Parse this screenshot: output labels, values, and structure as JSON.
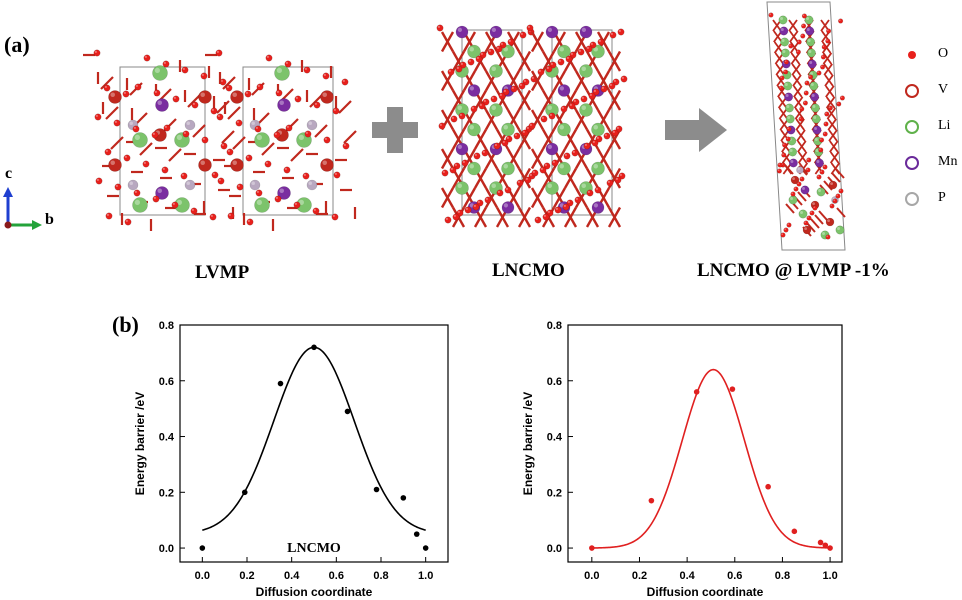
{
  "panels": {
    "a_label": "(a)",
    "b_label": "(b)"
  },
  "structures": {
    "lvmp": "LVMP",
    "lncmo": "LNCMO",
    "composite": "LNCMO @ LVMP -1%"
  },
  "axes_indicator": {
    "c": "c",
    "b": "b"
  },
  "legend": [
    {
      "label": "O",
      "color": "#e8201c",
      "style": "dot"
    },
    {
      "label": "V",
      "color": "#c0281e",
      "style": "ring"
    },
    {
      "label": "Li",
      "color": "#5fb14a",
      "style": "ring"
    },
    {
      "label": "Mn",
      "color": "#6a2a9a",
      "style": "ring"
    },
    {
      "label": "P",
      "color": "#a7a7a7",
      "style": "ring"
    }
  ],
  "colors": {
    "oxygen": "#e8201c",
    "vanadium": "#c0281e",
    "lithium": "#7cc36b",
    "manganese": "#7a2da0",
    "phosphorus": "#b8a8c0",
    "arrow": "#8c8c8c",
    "curve_left": "#000000",
    "curve_right": "#e02020"
  },
  "chart_data": [
    {
      "type": "scatter",
      "xlabel": "Diffusion coordinate",
      "ylabel": "Energy barrier /eV",
      "xlim": [
        -0.1,
        1.1
      ],
      "ylim": [
        -0.05,
        0.8
      ],
      "xticks": [
        "0.0",
        "0.2",
        "0.4",
        "0.6",
        "0.8",
        "1.0"
      ],
      "yticks": [
        "0.0",
        "0.2",
        "0.4",
        "0.6",
        "0.8"
      ],
      "annotation": "LNCMO",
      "color": "#000000",
      "points": [
        {
          "x": 0.0,
          "y": 0.0
        },
        {
          "x": 0.19,
          "y": 0.2
        },
        {
          "x": 0.35,
          "y": 0.59
        },
        {
          "x": 0.5,
          "y": 0.72
        },
        {
          "x": 0.65,
          "y": 0.49
        },
        {
          "x": 0.78,
          "y": 0.21
        },
        {
          "x": 0.9,
          "y": 0.18
        },
        {
          "x": 0.96,
          "y": 0.05
        },
        {
          "x": 1.0,
          "y": 0.0
        }
      ],
      "fit": {
        "center": 0.5,
        "sigma": 0.18,
        "amplitude": 0.67,
        "offset": 0.05
      }
    },
    {
      "type": "scatter",
      "xlabel": "Diffusion coordinate",
      "ylabel": "Energy barrier /eV",
      "xlim": [
        -0.1,
        1.05
      ],
      "ylim": [
        -0.05,
        0.8
      ],
      "xticks": [
        "0.0",
        "0.2",
        "0.4",
        "0.6",
        "0.8",
        "1.0"
      ],
      "yticks": [
        "0.0",
        "0.2",
        "0.4",
        "0.6",
        "0.8"
      ],
      "annotation": "",
      "color": "#e02020",
      "points": [
        {
          "x": 0.0,
          "y": 0.0
        },
        {
          "x": 0.25,
          "y": 0.17
        },
        {
          "x": 0.44,
          "y": 0.56
        },
        {
          "x": 0.59,
          "y": 0.57
        },
        {
          "x": 0.74,
          "y": 0.22
        },
        {
          "x": 0.85,
          "y": 0.06
        },
        {
          "x": 0.96,
          "y": 0.02
        },
        {
          "x": 0.98,
          "y": 0.01
        },
        {
          "x": 1.0,
          "y": 0.0
        }
      ],
      "fit": {
        "center": 0.51,
        "sigma": 0.13,
        "amplitude": 0.64,
        "offset": 0.0
      }
    }
  ]
}
